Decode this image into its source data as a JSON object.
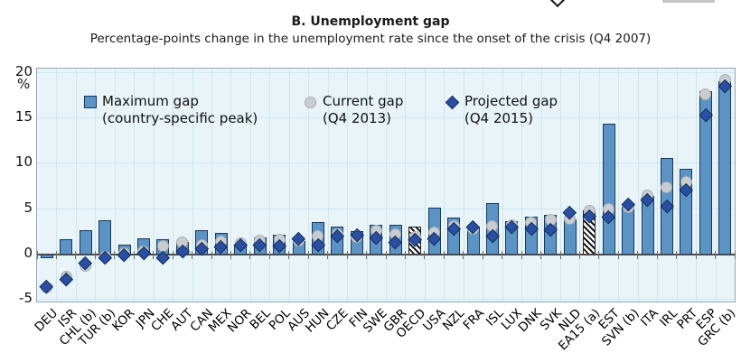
{
  "title": "B. Unemployment gap",
  "subtitle": "Percentage-points change in the unemployment rate since the onset of the crisis (Q4 2007)",
  "y_axis": {
    "unit": "%"
  },
  "legend": {
    "maximum": {
      "line1": "Maximum gap",
      "line2": "(country-specific peak)"
    },
    "current": {
      "line1": "Current gap",
      "line2": "(Q4 2013)"
    },
    "projected": {
      "line1": "Projected gap",
      "line2": "(Q4 2015)"
    }
  },
  "colors": {
    "bar_fill": "#5b93c5",
    "bar_border": "#17375e",
    "hatch": "#1a1a1a",
    "hatch_border": "#222222",
    "circle_fill": "#c9cdd2",
    "circle_border": "#a7adb2",
    "diamond_fill": "#2a4fa2",
    "diamond_border": "#13305c",
    "plot_bg": "#e9f4f9",
    "grid": "#cfe6f0",
    "zero_line": "#4a4a4a"
  },
  "chart_data": {
    "type": "bar",
    "title": "B. Unemployment gap",
    "ylabel": "%",
    "ylim": [
      -5.2,
      20.4
    ],
    "yticks": [
      20,
      15,
      10,
      5,
      0,
      -5
    ],
    "grid": true,
    "legend_position": "top-left-inside",
    "categories": [
      "DEU",
      "ISR",
      "CHL (b)",
      "TUR (b)",
      "KOR",
      "JPN",
      "CHE",
      "AUT",
      "CAN",
      "MEX",
      "NOR",
      "BEL",
      "POL",
      "AUS",
      "HUN",
      "CZE",
      "FIN",
      "SWE",
      "GBR",
      "OECD",
      "USA",
      "NZL",
      "FRA",
      "ISL",
      "LUX",
      "DNK",
      "SVK",
      "NLD",
      "EA15 (a)",
      "EST",
      "SVN (b)",
      "ITA",
      "IRL",
      "PRT",
      "ESP",
      "GRC (b)"
    ],
    "hatched_categories": [
      "OECD",
      "EA15 (a)"
    ],
    "series": [
      {
        "name": "Maximum gap (country-specific peak)",
        "style": "bar",
        "values": [
          -0.4,
          1.6,
          2.6,
          3.7,
          1.1,
          1.7,
          1.6,
          1.3,
          2.6,
          2.3,
          1.1,
          1.8,
          2.1,
          1.4,
          3.5,
          3.0,
          2.5,
          3.2,
          3.2,
          3.0,
          5.1,
          4.0,
          3.0,
          5.6,
          3.6,
          4.1,
          4.3,
          3.8,
          4.8,
          14.3,
          5.2,
          6.4,
          10.6,
          9.4,
          17.9,
          19.0
        ]
      },
      {
        "name": "Current gap (Q4 2013)",
        "style": "circle-marker",
        "values": [
          -3.7,
          -2.5,
          -1.3,
          -0.3,
          0.1,
          0.3,
          0.9,
          1.3,
          1.0,
          1.4,
          1.2,
          1.5,
          1.6,
          1.5,
          2.0,
          2.2,
          1.9,
          2.6,
          2.2,
          1.9,
          2.4,
          3.1,
          2.8,
          3.1,
          3.2,
          3.5,
          3.8,
          3.9,
          4.8,
          5.0,
          5.2,
          6.5,
          7.4,
          7.9,
          17.6,
          19.2
        ]
      },
      {
        "name": "Projected gap (Q4 2015)",
        "style": "diamond-marker",
        "values": [
          -3.5,
          -2.7,
          -1.0,
          -0.4,
          -0.1,
          0.1,
          -0.4,
          0.3,
          0.6,
          0.8,
          1.0,
          1.0,
          0.9,
          1.7,
          1.0,
          2.0,
          2.1,
          1.8,
          1.3,
          1.6,
          1.7,
          2.8,
          3.0,
          2.0,
          3.0,
          2.8,
          2.7,
          4.6,
          4.2,
          4.1,
          5.5,
          6.0,
          5.3,
          7.1,
          15.3,
          18.5
        ]
      }
    ]
  }
}
